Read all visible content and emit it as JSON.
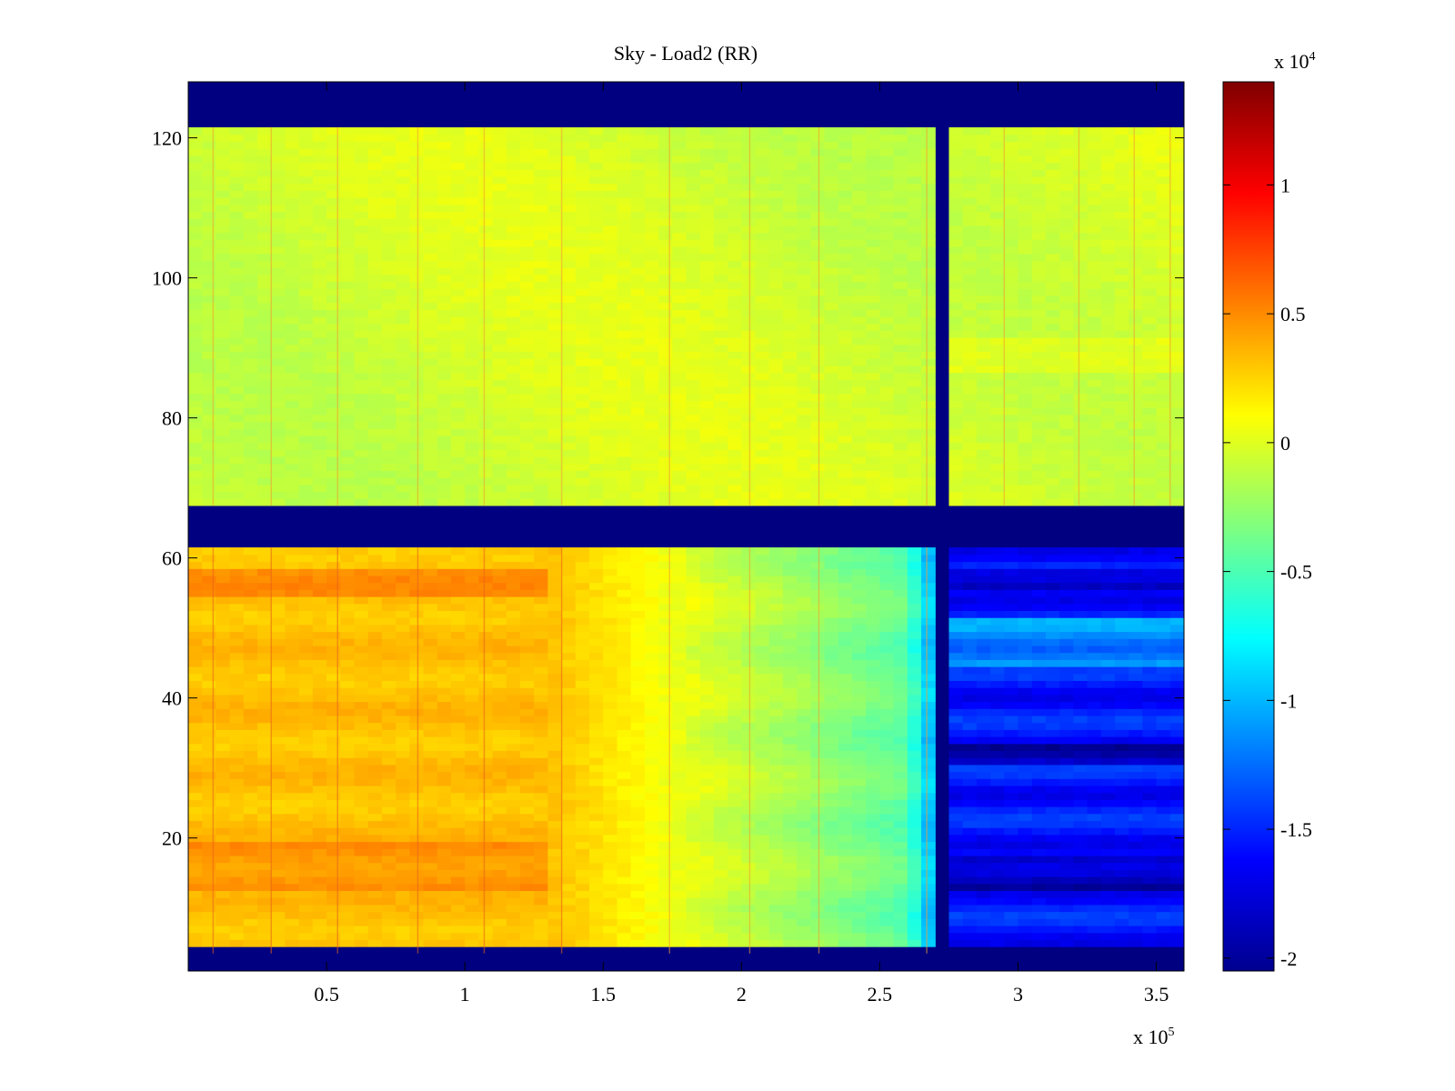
{
  "chart_data": {
    "type": "heatmap",
    "title": "Sky - Load2 (RR)",
    "xlabel": "",
    "ylabel": "",
    "x_multiplier": "x 10",
    "x_multiplier_exp": "5",
    "xlim": [
      0,
      3.6
    ],
    "ylim": [
      1,
      128
    ],
    "x_ticks": [
      0.5,
      1,
      1.5,
      2,
      2.5,
      3,
      3.5
    ],
    "x_tick_labels": [
      "0.5",
      "1",
      "1.5",
      "2",
      "2.5",
      "3",
      "3.5"
    ],
    "y_ticks": [
      20,
      40,
      60,
      80,
      100,
      120
    ],
    "y_tick_labels": [
      "20",
      "40",
      "60",
      "80",
      "100",
      "120"
    ],
    "colormap": "jet",
    "colorbar": {
      "multiplier": "x 10",
      "multiplier_exp": "4",
      "clim": [
        -2.05,
        1.4
      ],
      "ticks": [
        1,
        0.5,
        0,
        -0.5,
        -1,
        -1.5,
        -2
      ],
      "tick_labels": [
        "1",
        "0.5",
        "0",
        "-0.5",
        "-1",
        "-1.5",
        "-2"
      ]
    },
    "masked_row_bands": [
      [
        1,
        4
      ],
      [
        62,
        67
      ],
      [
        122,
        128
      ]
    ],
    "masked_column_bands": [
      [
        2.68,
        2.75
      ]
    ],
    "regions": [
      {
        "rows": [
          68,
          121
        ],
        "x": [
          0,
          3.6
        ],
        "value": 0.0,
        "note": "uniform near zero"
      },
      {
        "rows": [
          4,
          61
        ],
        "x": [
          0,
          1.3
        ],
        "value": 0.35
      },
      {
        "rows": [
          4,
          61
        ],
        "x": [
          1.3,
          1.8
        ],
        "value": 0.1
      },
      {
        "rows": [
          4,
          61
        ],
        "x": [
          1.8,
          2.68
        ],
        "value": -0.45
      },
      {
        "rows": [
          4,
          61
        ],
        "x": [
          2.75,
          3.6
        ],
        "value": -1.5
      }
    ]
  }
}
